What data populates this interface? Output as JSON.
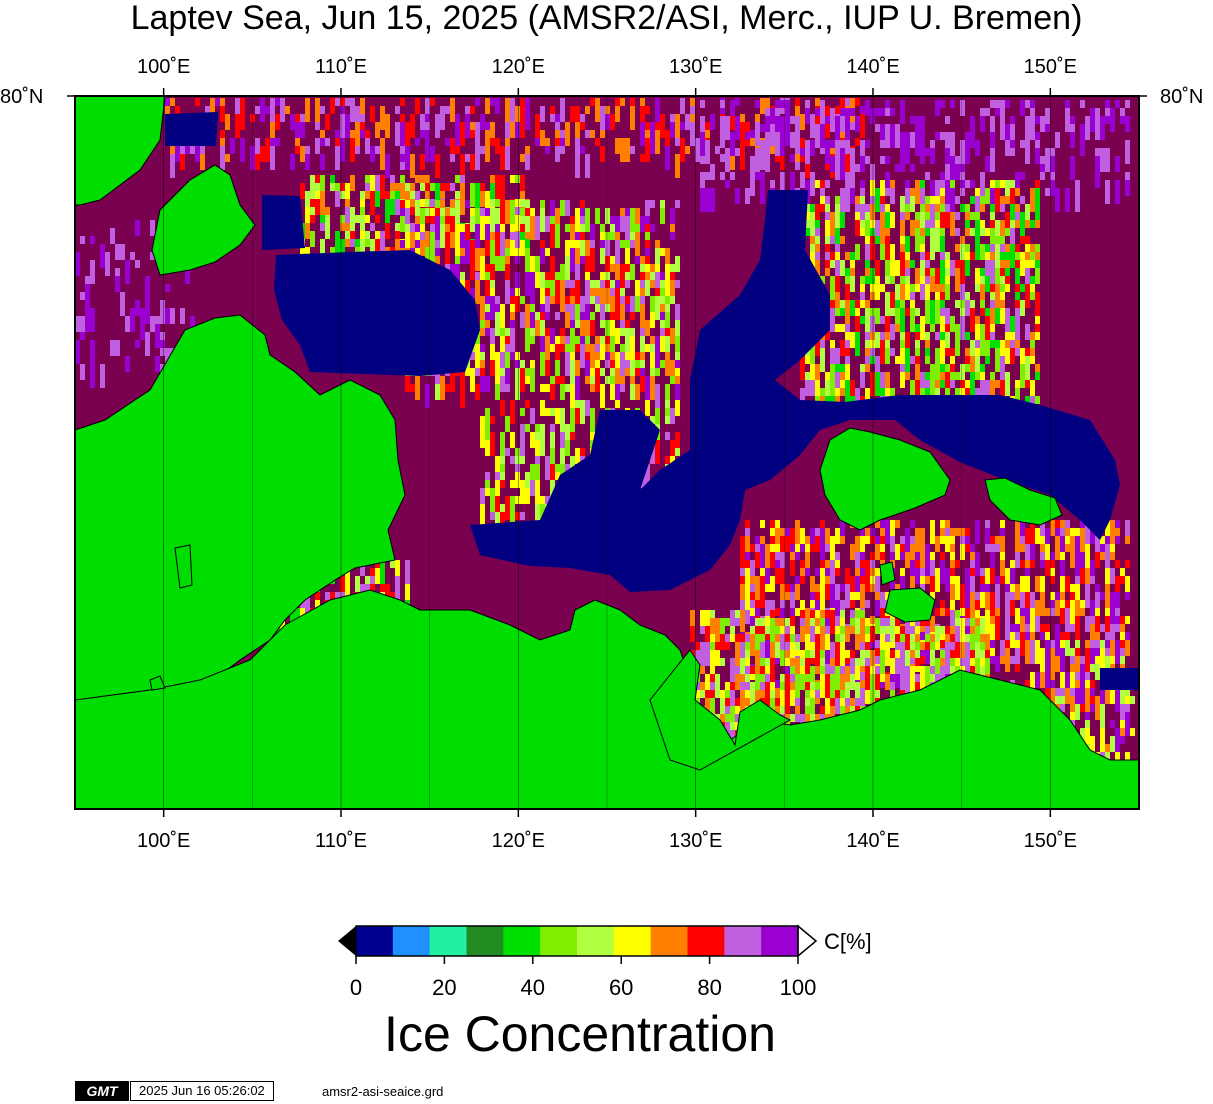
{
  "title": "Laptev Sea, Jun 15, 2025 (AMSR2/ASI, Merc., IUP U. Bremen)",
  "map": {
    "lon_range": [
      95,
      155
    ],
    "lon_ticks": [
      {
        "lon": 100,
        "label": "100˚E"
      },
      {
        "lon": 110,
        "label": "110˚E"
      },
      {
        "lon": 120,
        "label": "120˚E"
      },
      {
        "lon": 130,
        "label": "130˚E"
      },
      {
        "lon": 140,
        "label": "140˚E"
      },
      {
        "lon": 150,
        "label": "150˚E"
      }
    ],
    "lat_label": "80˚N",
    "colors": {
      "land": "#00dd00",
      "open_water_low": "#000080",
      "high_ice": "#7a0050",
      "grid": "#000000"
    }
  },
  "colorbar": {
    "unit_label": "C[%]",
    "title": "Ice Concentration",
    "tick_labels": [
      "0",
      "20",
      "40",
      "60",
      "80",
      "100"
    ],
    "colors": [
      "#000090",
      "#1e90ff",
      "#20f0a0",
      "#228b22",
      "#00e000",
      "#7fee00",
      "#b0ff40",
      "#ffff00",
      "#ff8000",
      "#ff0000",
      "#c060e0",
      "#9a00d0"
    ]
  },
  "footer": {
    "logo": "GMT",
    "timestamp": "2025 Jun 16 05:26:02",
    "filename": "amsr2-asi-seaice.grd"
  }
}
